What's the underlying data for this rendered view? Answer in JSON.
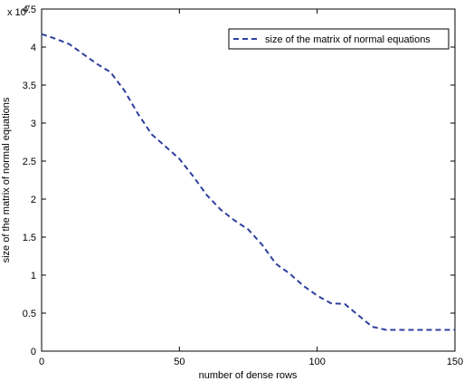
{
  "chart_data": {
    "type": "line",
    "title": "",
    "xlabel": "number of dense rows",
    "ylabel": "size of the matrix of normal equations",
    "y_exponent_label": "x 10",
    "y_exponent_power": "7",
    "xlim": [
      0,
      150
    ],
    "ylim": [
      0,
      45000000
    ],
    "xticks": [
      0,
      50,
      100,
      150
    ],
    "xtick_labels": [
      "0",
      "50",
      "100",
      "150"
    ],
    "yticks": [
      0,
      5000000,
      10000000,
      15000000,
      20000000,
      25000000,
      30000000,
      35000000,
      40000000,
      45000000
    ],
    "ytick_labels": [
      "0",
      "0.5",
      "1",
      "1.5",
      "2",
      "2.5",
      "3",
      "3.5",
      "4",
      "4.5"
    ],
    "grid": false,
    "legend": {
      "position": "top-right",
      "entries": [
        "size of the matrix of normal equations"
      ]
    },
    "series": [
      {
        "name": "size of the matrix of normal equations",
        "color": "#2e3f9e",
        "dash": "dashed",
        "x": [
          0,
          5,
          10,
          15,
          20,
          25,
          30,
          35,
          40,
          45,
          50,
          55,
          60,
          65,
          70,
          75,
          80,
          85,
          90,
          95,
          100,
          105,
          110,
          115,
          120,
          125,
          130,
          135,
          140,
          145,
          150
        ],
        "y": [
          41700000,
          41100000,
          40400000,
          39100000,
          37800000,
          36700000,
          34300000,
          31200000,
          28500000,
          26900000,
          25300000,
          23000000,
          20500000,
          18600000,
          17200000,
          16000000,
          14000000,
          11500000,
          10200000,
          8600000,
          7300000,
          6300000,
          6200000,
          4700000,
          3200000,
          2800000,
          2800000,
          2800000,
          2800000,
          2800000,
          2800000
        ]
      }
    ]
  }
}
